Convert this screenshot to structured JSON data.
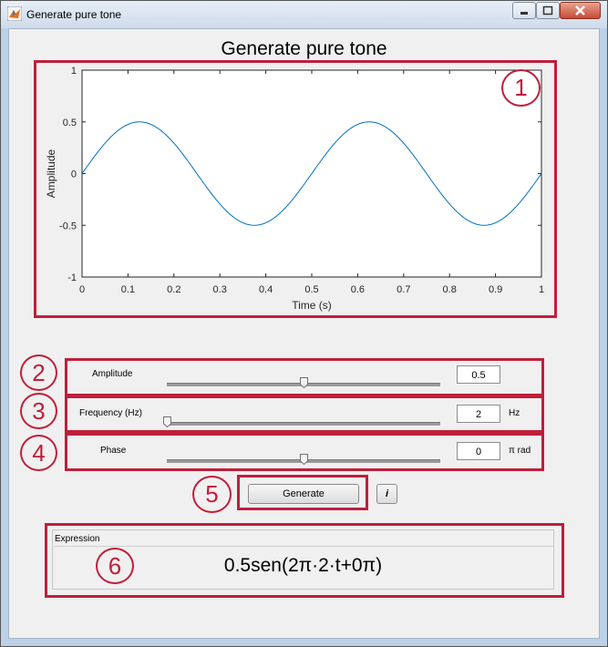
{
  "window": {
    "title": "Generate pure tone"
  },
  "figure_title": "Generate pure tone",
  "chart_data": {
    "type": "line",
    "title": "",
    "xlabel": "Time (s)",
    "ylabel": "Amplitude",
    "xlim": [
      0,
      1
    ],
    "ylim": [
      -1,
      1
    ],
    "xticks": [
      "0",
      "0.1",
      "0.2",
      "0.3",
      "0.4",
      "0.5",
      "0.6",
      "0.7",
      "0.8",
      "0.9",
      "1"
    ],
    "yticks": [
      "1",
      "0.5",
      "0",
      "-0.5",
      "-1"
    ],
    "series": [
      {
        "function": "0.5*sin(2*pi*2*t)",
        "amplitude": 0.5,
        "frequency_hz": 2,
        "phase_pi_rad": 0,
        "color": "#0072bd"
      }
    ]
  },
  "controls": {
    "amplitude": {
      "label": "Amplitude",
      "value": "0.5",
      "slider_fraction": 0.5
    },
    "frequency": {
      "label": "Frequency (Hz)",
      "value": "2",
      "unit": "Hz",
      "slider_fraction": 0.0
    },
    "phase": {
      "label": "Phase",
      "value": "0",
      "unit": "π rad",
      "slider_fraction": 0.5
    }
  },
  "buttons": {
    "generate": "Generate",
    "info": "i"
  },
  "expression": {
    "title": "Expression",
    "text": "0.5sen(2π·2·t+0π)"
  },
  "callouts": [
    "1",
    "2",
    "3",
    "4",
    "5",
    "6"
  ],
  "colors": {
    "highlight": "#c01e3a",
    "plot_line": "#0072bd"
  }
}
